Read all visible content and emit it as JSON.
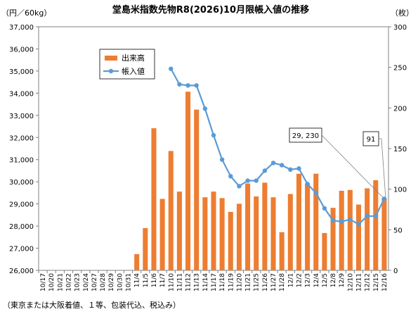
{
  "chart_data": {
    "type": "bar+line",
    "title": "堂島米指数先物R8(2026)10月限帳入値の推移",
    "left_axis_unit": "（円／60kg）",
    "right_axis_unit": "（枚）",
    "note": "（東京または大阪着値、１等、包装代込、税込み）",
    "categories": [
      "10/17",
      "10/20",
      "10/21",
      "10/22",
      "10/23",
      "10/24",
      "10/27",
      "10/28",
      "10/29",
      "10/30",
      "10/31",
      "11/4",
      "11/5",
      "11/6",
      "11/7",
      "11/10",
      "11/11",
      "11/12",
      "11/13",
      "11/14",
      "11/17",
      "11/18",
      "11/19",
      "11/20",
      "11/21",
      "11/25",
      "11/26",
      "11/27",
      "11/28",
      "12/1",
      "12/2",
      "12/3",
      "12/4",
      "12/5",
      "12/8",
      "12/9",
      "12/10",
      "12/11",
      "12/12",
      "12/15",
      "12/16"
    ],
    "y_left_range": [
      26000,
      37000
    ],
    "y_left_ticks": [
      "26,000",
      "27,000",
      "28,000",
      "29,000",
      "30,000",
      "31,000",
      "32,000",
      "33,000",
      "34,000",
      "35,000",
      "36,000",
      "37,000"
    ],
    "y_right_range": [
      0,
      300
    ],
    "y_right_ticks": [
      "0",
      "50",
      "100",
      "150",
      "200",
      "250",
      "300"
    ],
    "legend": {
      "position": "top-left",
      "bar_label": "出来高",
      "line_label": "帳入値"
    },
    "colors": {
      "bar": "#ed7d31",
      "line": "#5b9bd5"
    },
    "series": [
      {
        "name": "出来高",
        "axis": "right",
        "type": "bar",
        "values": [
          null,
          null,
          null,
          null,
          null,
          null,
          null,
          null,
          null,
          null,
          null,
          20,
          52,
          175,
          88,
          147,
          97,
          220,
          198,
          90,
          97,
          89,
          72,
          82,
          107,
          91,
          108,
          90,
          47,
          94,
          119,
          107,
          119,
          46,
          77,
          98,
          99,
          81,
          101,
          111,
          89
        ]
      },
      {
        "name": "帳入値",
        "axis": "left",
        "type": "line",
        "values": [
          null,
          null,
          null,
          null,
          null,
          null,
          null,
          null,
          null,
          null,
          null,
          null,
          null,
          null,
          null,
          35100,
          34400,
          34350,
          34350,
          33300,
          32100,
          31000,
          30250,
          29800,
          30050,
          30050,
          30500,
          30850,
          30750,
          30550,
          30600,
          29900,
          29500,
          28800,
          28250,
          28200,
          28300,
          28080,
          28450,
          28450,
          29230
        ]
      }
    ],
    "callouts": [
      {
        "text": "29, 230"
      },
      {
        "text": "91"
      }
    ]
  }
}
